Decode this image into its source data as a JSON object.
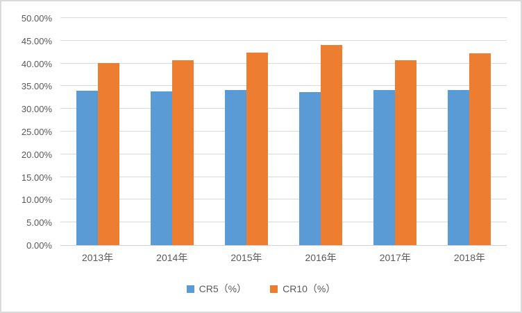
{
  "chart_data": {
    "type": "bar",
    "categories": [
      "2013年",
      "2014年",
      "2015年",
      "2016年",
      "2017年",
      "2018年"
    ],
    "series": [
      {
        "key": "cr5",
        "name": "CR5（%）",
        "color": "#5B9BD5",
        "values": [
          34.0,
          33.8,
          34.2,
          33.7,
          34.1,
          34.1
        ]
      },
      {
        "key": "cr10",
        "name": "CR10（%）",
        "color": "#ED7D31",
        "values": [
          40.1,
          40.7,
          42.4,
          44.0,
          40.7,
          42.2
        ]
      }
    ],
    "title": "",
    "xlabel": "",
    "ylabel": "",
    "ylim": [
      0,
      50
    ],
    "ytick_step": 5,
    "ytick_labels": [
      "0.00%",
      "5.00%",
      "10.00%",
      "15.00%",
      "20.00%",
      "25.00%",
      "30.00%",
      "35.00%",
      "40.00%",
      "45.00%",
      "50.00%"
    ],
    "grid": true,
    "legend_position": "bottom",
    "colors": {
      "gridline": "#D9D9D9",
      "axis_text": "#595959",
      "frame_border": "#D9D9D9",
      "background": "#FFFFFF"
    }
  }
}
